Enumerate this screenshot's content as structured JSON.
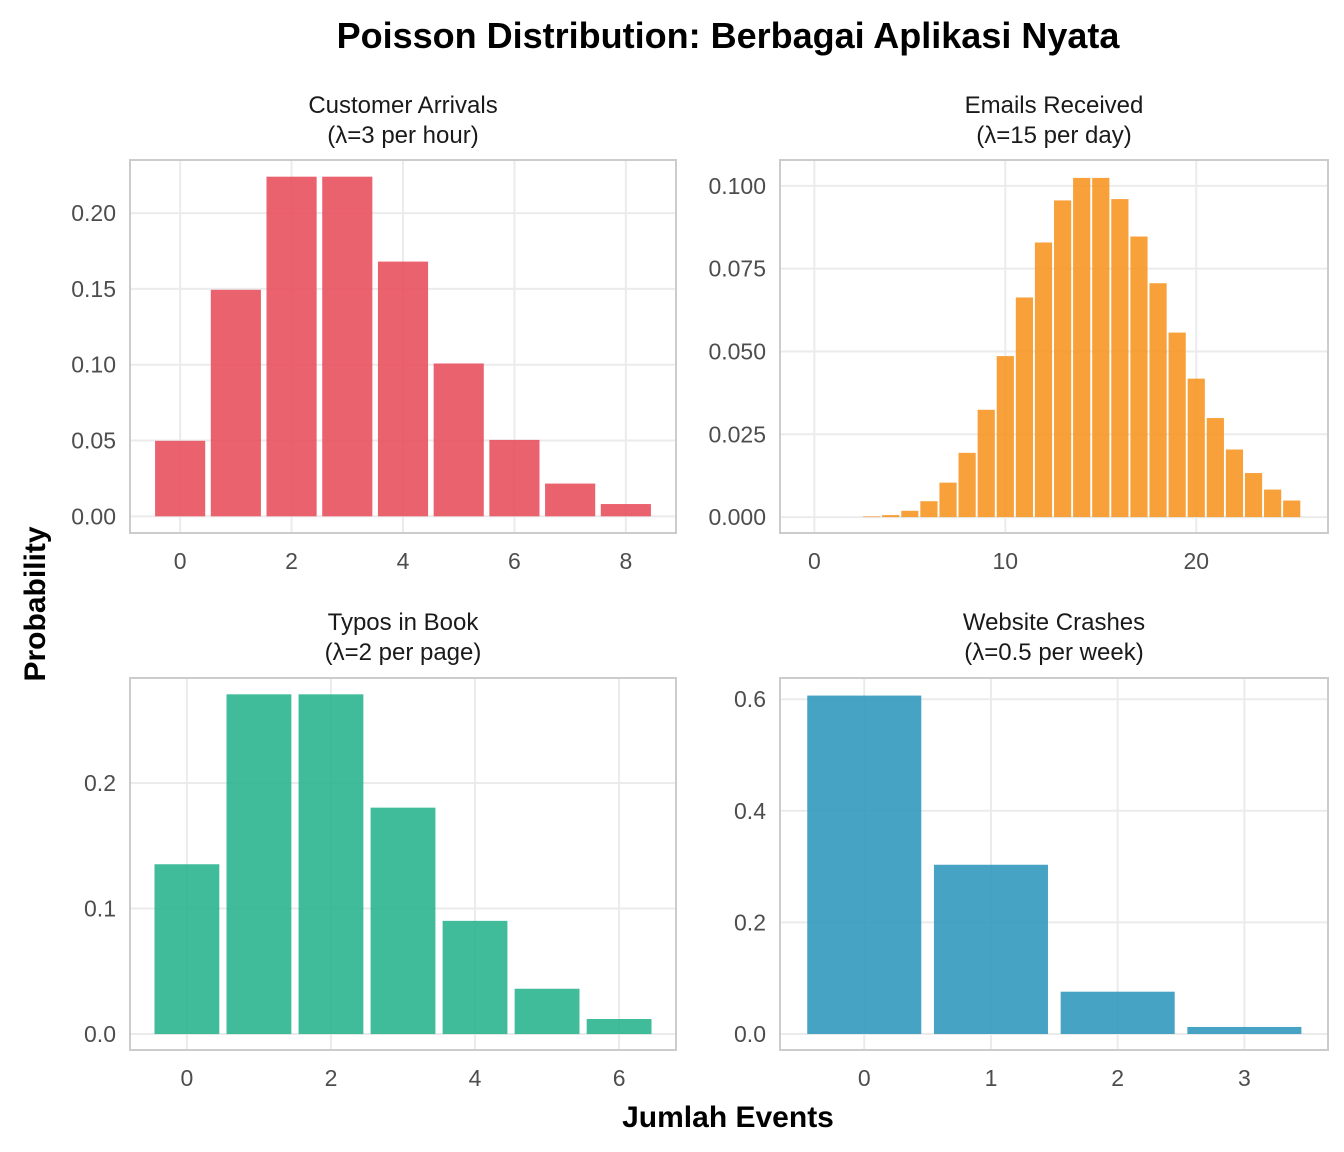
{
  "chart_data": {
    "type": "bar",
    "title": "Poisson Distribution: Berbagai Aplikasi Nyata",
    "xlabel": "Jumlah Events",
    "ylabel": "Probability",
    "grid": true,
    "panels": [
      {
        "title_line1": "Customer Arrivals",
        "title_line2": "(λ=3 per hour)",
        "color": "#E84C5B",
        "x": [
          0,
          1,
          2,
          3,
          4,
          5,
          6,
          7,
          8
        ],
        "values": [
          0.0498,
          0.1494,
          0.224,
          0.224,
          0.168,
          0.1008,
          0.0504,
          0.0216,
          0.0081
        ],
        "xlim": [
          -0.9,
          8.9
        ],
        "ylim": [
          -0.011,
          0.235
        ],
        "xticks": [
          0,
          2,
          4,
          6,
          8
        ],
        "xtick_labels": [
          "0",
          "2",
          "4",
          "6",
          "8"
        ],
        "yticks": [
          0,
          0.05,
          0.1,
          0.15,
          0.2
        ],
        "ytick_labels": [
          "0.00",
          "0.05",
          "0.10",
          "0.15",
          "0.20"
        ]
      },
      {
        "title_line1": "Emails Received",
        "title_line2": "(λ=15 per day)",
        "color": "#F7931E",
        "x": [
          0,
          1,
          2,
          3,
          4,
          5,
          6,
          7,
          8,
          9,
          10,
          11,
          12,
          13,
          14,
          15,
          16,
          17,
          18,
          19,
          20,
          21,
          22,
          23,
          24,
          25
        ],
        "values": [
          0.0,
          0.0,
          0.0,
          0.0002,
          0.0006,
          0.0019,
          0.0048,
          0.0104,
          0.0194,
          0.0324,
          0.0486,
          0.0663,
          0.0829,
          0.0956,
          0.1024,
          0.1024,
          0.096,
          0.0847,
          0.0706,
          0.0557,
          0.0418,
          0.0299,
          0.0204,
          0.0133,
          0.0083,
          0.005
        ],
        "xlim": [
          -1.8,
          26.9
        ],
        "ylim": [
          -0.0048,
          0.1078
        ],
        "xticks": [
          0,
          10,
          20
        ],
        "xtick_labels": [
          "0",
          "10",
          "20"
        ],
        "yticks": [
          0,
          0.025,
          0.05,
          0.075,
          0.1
        ],
        "ytick_labels": [
          "0.000",
          "0.025",
          "0.050",
          "0.075",
          "0.100"
        ]
      },
      {
        "title_line1": "Typos in Book",
        "title_line2": "(λ=2 per page)",
        "color": "#26B38C",
        "x": [
          0,
          1,
          2,
          3,
          4,
          5,
          6
        ],
        "values": [
          0.1353,
          0.2707,
          0.2707,
          0.1804,
          0.0902,
          0.0361,
          0.012
        ],
        "xlim": [
          -0.79,
          6.79
        ],
        "ylim": [
          -0.0127,
          0.2837
        ],
        "xticks": [
          0,
          2,
          4,
          6
        ],
        "xtick_labels": [
          "0",
          "2",
          "4",
          "6"
        ],
        "yticks": [
          0,
          0.1,
          0.2
        ],
        "ytick_labels": [
          "0.0",
          "0.1",
          "0.2"
        ]
      },
      {
        "title_line1": "Website Crashes",
        "title_line2": "(λ=0.5 per week)",
        "color": "#2E96BC",
        "x": [
          0,
          1,
          2,
          3
        ],
        "values": [
          0.6065,
          0.3033,
          0.0758,
          0.0126
        ],
        "xlim": [
          -0.665,
          3.66
        ],
        "ylim": [
          -0.0287,
          0.638
        ],
        "xticks": [
          0,
          1,
          2,
          3
        ],
        "xtick_labels": [
          "0",
          "1",
          "2",
          "3"
        ],
        "yticks": [
          0,
          0.2,
          0.4,
          0.6
        ],
        "ytick_labels": [
          "0.0",
          "0.2",
          "0.4",
          "0.6"
        ]
      }
    ]
  }
}
